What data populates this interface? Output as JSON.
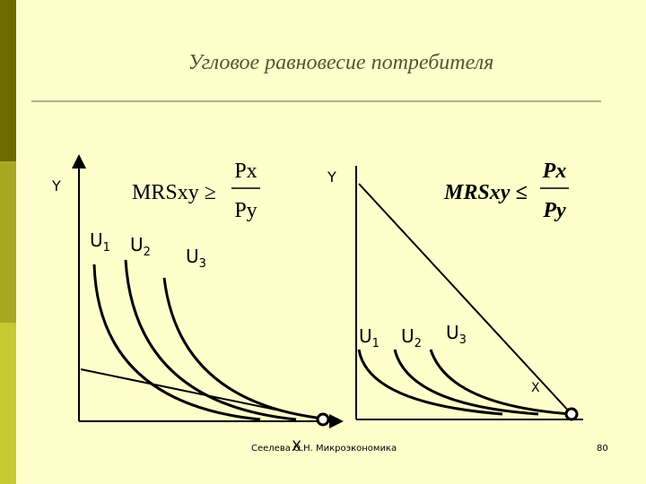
{
  "title": "Угловое равновесие потребителя",
  "left_panel": {
    "y_label": "Y",
    "x_label": "X",
    "formula": {
      "lhs": "MRSxy ≥",
      "numerator": "Px",
      "denominator": "Py"
    },
    "curves": [
      {
        "letter": "U",
        "sub": "1"
      },
      {
        "letter": "U",
        "sub": "2"
      },
      {
        "letter": "U",
        "sub": "3"
      }
    ]
  },
  "right_panel": {
    "y_label": "Y",
    "x_label": "X",
    "formula": {
      "lhs": "MRSxy ≤",
      "numerator": "Px",
      "denominator": "Py"
    },
    "curves": [
      {
        "letter": "U",
        "sub": "1"
      },
      {
        "letter": "U",
        "sub": "2"
      },
      {
        "letter": "U",
        "sub": "3"
      }
    ]
  },
  "footer": {
    "author": "Сеелева О.Н. Микроэкономика",
    "page": "80"
  }
}
